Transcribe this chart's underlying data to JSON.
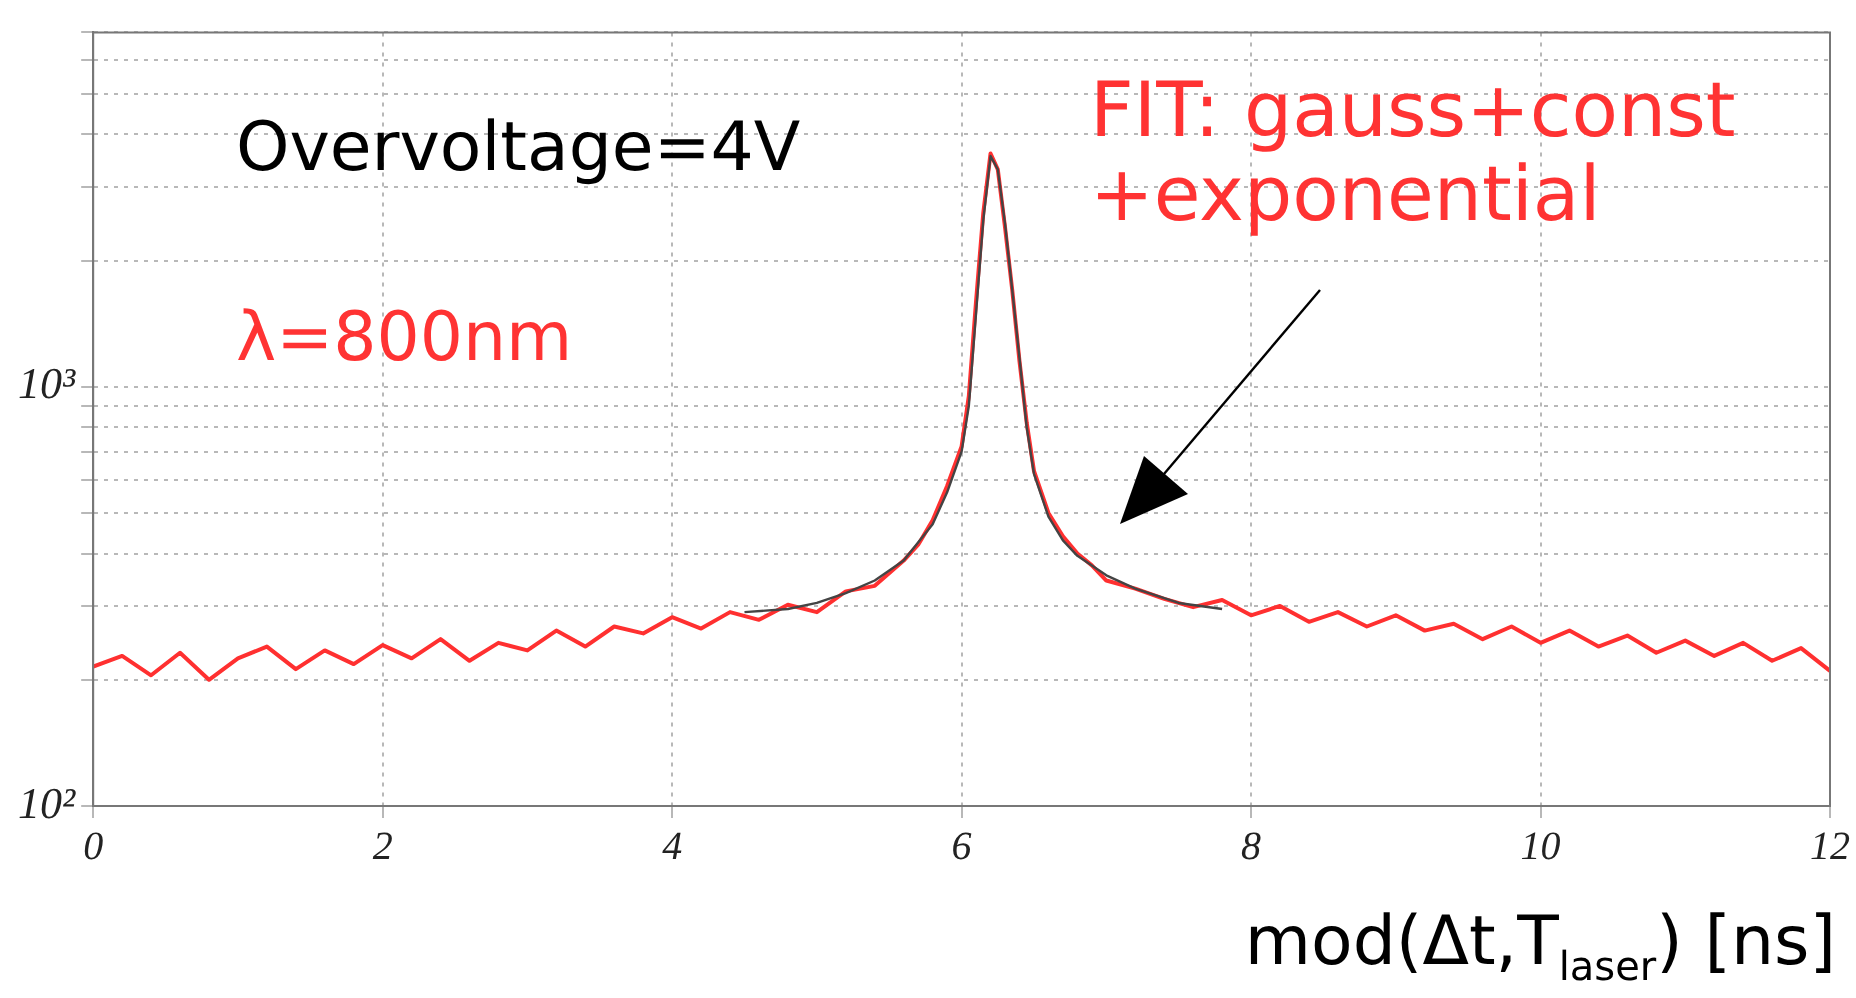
{
  "chart_data": {
    "type": "line",
    "xlabel": "mod(Δt,T$_{laser}$) [ns]",
    "annotations": [
      "Overvoltage=4V",
      "λ=800nm",
      "FIT: gauss+const\n+exponential"
    ],
    "xlim": [
      0,
      12
    ],
    "xticks": [
      0,
      2,
      4,
      6,
      8,
      10,
      12
    ],
    "ylim": [
      100,
      7000
    ],
    "log": "y",
    "grid": true,
    "legend": false,
    "marker": "none",
    "yticks": [
      {
        "value": 100,
        "label": "10²"
      },
      {
        "value": 200,
        "label": null
      },
      {
        "value": 300,
        "label": null
      },
      {
        "value": 400,
        "label": null
      },
      {
        "value": 500,
        "label": null
      },
      {
        "value": 600,
        "label": null
      },
      {
        "value": 700,
        "label": null
      },
      {
        "value": 800,
        "label": null
      },
      {
        "value": 900,
        "label": null
      },
      {
        "value": 1000,
        "label": "10³"
      },
      {
        "value": 2000,
        "label": null
      },
      {
        "value": 3000,
        "label": null
      },
      {
        "value": 4000,
        "label": null
      },
      {
        "value": 5000,
        "label": null
      },
      {
        "value": 6000,
        "label": null
      },
      {
        "value": 7000,
        "label": null
      }
    ],
    "series": [
      {
        "color": "#ff3030",
        "x": [
          0,
          0.2,
          0.4,
          0.6,
          0.8,
          1.0,
          1.2,
          1.4,
          1.6,
          1.8,
          2.0,
          2.2,
          2.4,
          2.6,
          2.8,
          3.0,
          3.2,
          3.4,
          3.6,
          3.8,
          4.0,
          4.2,
          4.4,
          4.6,
          4.8,
          5.0,
          5.2,
          5.4,
          5.6,
          5.7,
          5.8,
          5.9,
          6.0,
          6.05,
          6.1,
          6.15,
          6.2,
          6.25,
          6.3,
          6.35,
          6.4,
          6.45,
          6.5,
          6.6,
          6.7,
          6.8,
          6.9,
          7.0,
          7.2,
          7.4,
          7.6,
          7.8,
          8.0,
          8.2,
          8.4,
          8.6,
          8.8,
          9.0,
          9.2,
          9.4,
          9.6,
          9.8,
          10.0,
          10.2,
          10.4,
          10.6,
          10.8,
          11.0,
          11.2,
          11.4,
          11.6,
          11.8,
          12.0
        ],
        "values": [
          215,
          228,
          205,
          232,
          200,
          225,
          240,
          212,
          235,
          218,
          242,
          225,
          250,
          222,
          245,
          235,
          262,
          240,
          268,
          258,
          282,
          265,
          290,
          278,
          302,
          290,
          325,
          335,
          385,
          420,
          480,
          580,
          720,
          950,
          1600,
          2600,
          3600,
          3300,
          2400,
          1700,
          1150,
          820,
          630,
          500,
          440,
          400,
          375,
          345,
          330,
          312,
          298,
          310,
          285,
          300,
          275,
          290,
          268,
          285,
          262,
          272,
          250,
          268,
          245,
          262,
          240,
          255,
          232,
          248,
          228,
          245,
          222,
          238,
          210
        ]
      },
      {
        "color": "#444444",
        "x": [
          4.5,
          4.8,
          5.0,
          5.2,
          5.4,
          5.6,
          5.8,
          5.9,
          6.0,
          6.05,
          6.1,
          6.15,
          6.2,
          6.25,
          6.3,
          6.35,
          6.4,
          6.45,
          6.5,
          6.6,
          6.7,
          6.8,
          7.0,
          7.2,
          7.5,
          7.8
        ],
        "values": [
          290,
          295,
          305,
          322,
          345,
          385,
          470,
          560,
          700,
          900,
          1500,
          2500,
          3550,
          3300,
          2450,
          1700,
          1170,
          800,
          620,
          490,
          430,
          395,
          355,
          330,
          305,
          295
        ]
      }
    ]
  }
}
